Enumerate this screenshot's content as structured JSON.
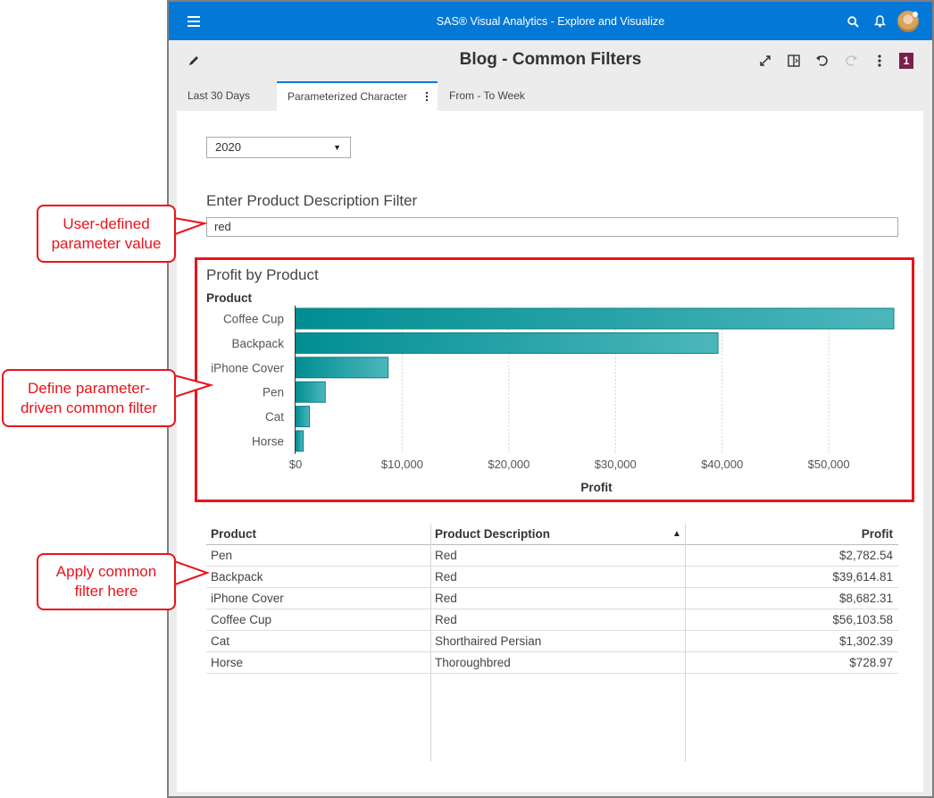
{
  "app": {
    "window_title": "SAS® Visual Analytics - Explore and Visualize",
    "report_title": "Blog - Common Filters",
    "page_badge": "1",
    "icons": {
      "menu": "hamburger-menu-icon",
      "search": "search-icon",
      "notifications": "bell-icon",
      "avatar": "user-avatar",
      "edit": "pencil-icon",
      "expand": "expand-icon",
      "panel": "side-panel-icon",
      "undo": "undo-icon",
      "redo": "redo-icon",
      "more": "more-vertical-icon"
    },
    "colors": {
      "header_blue": "#0478d7",
      "badge": "#7d1f4f",
      "callout_red": "#e8141b",
      "bar_teal": "#0e969c"
    }
  },
  "tabs": [
    {
      "label": "Last 30 Days",
      "active": false
    },
    {
      "label": "Parameterized Character",
      "active": true
    },
    {
      "label": "From - To Week",
      "active": false
    }
  ],
  "controls": {
    "year_select_value": "2020",
    "filter_label": "Enter Product Description Filter",
    "filter_value": "red"
  },
  "chart_data": {
    "type": "bar",
    "orientation": "horizontal",
    "title": "Profit by Product",
    "ylabel": "Product",
    "xlabel": "Profit",
    "categories": [
      "Coffee Cup",
      "Backpack",
      "iPhone Cover",
      "Pen",
      "Cat",
      "Horse"
    ],
    "values": [
      56103.58,
      39614.81,
      8682.31,
      2782.54,
      1302.39,
      728.97
    ],
    "xticks": [
      "$0",
      "$10,000",
      "$20,000",
      "$30,000",
      "$40,000",
      "$50,000"
    ],
    "xlim": [
      0,
      56103.58
    ],
    "grid": true
  },
  "table": {
    "columns": [
      "Product",
      "Product Description",
      "Profit"
    ],
    "sort_indicator": "▲",
    "rows": [
      [
        "Pen",
        "Red",
        "$2,782.54"
      ],
      [
        "Backpack",
        "Red",
        "$39,614.81"
      ],
      [
        "iPhone Cover",
        "Red",
        "$8,682.31"
      ],
      [
        "Coffee Cup",
        "Red",
        "$56,103.58"
      ],
      [
        "Cat",
        "Shorthaired Persian",
        "$1,302.39"
      ],
      [
        "Horse",
        "Thoroughbred",
        "$728.97"
      ]
    ]
  },
  "callouts": {
    "c1": [
      "User-defined",
      "parameter value"
    ],
    "c2": [
      "Define parameter-",
      "driven common filter"
    ],
    "c3": [
      "Apply common",
      "filter here"
    ]
  }
}
